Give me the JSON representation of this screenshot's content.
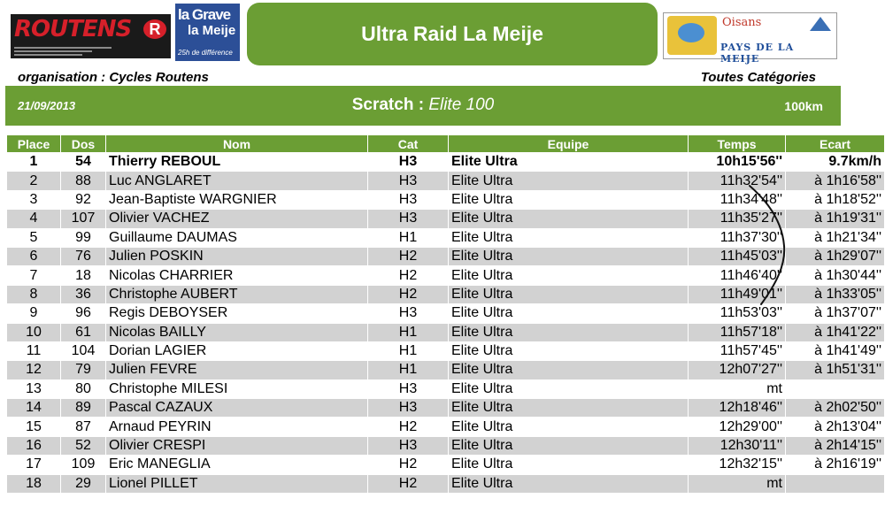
{
  "header": {
    "title": "Ultra Raid La Meije",
    "organisation": "organisation : Cycles Routens",
    "categories": "Toutes Catégories",
    "date": "21/09/2013",
    "scratch_label": "Scratch :",
    "scratch_category": "Elite 100",
    "distance": "100km"
  },
  "logos": {
    "routens": "ROUTENS",
    "routens_r": "R",
    "lagrave_line1": "la Grave",
    "lagrave_line2": "la Meije",
    "lagrave_tagline": "25h de différence",
    "oisans": "Oisans",
    "pays_meije": "PAYS DE LA MEIJE"
  },
  "colors": {
    "accent_green": "#6b9e34",
    "row_alt_gray": "#d2d2d2"
  },
  "table": {
    "columns": [
      "Place",
      "Dos",
      "Nom",
      "Cat",
      "Equipe",
      "Temps",
      "Ecart"
    ],
    "rows": [
      [
        "1",
        "54",
        "Thierry REBOUL",
        "H3",
        "Elite Ultra",
        "10h15'56''",
        "9.7km/h"
      ],
      [
        "2",
        "88",
        "Luc ANGLARET",
        "H3",
        "Elite Ultra",
        "11h32'54''",
        "à 1h16'58''"
      ],
      [
        "3",
        "92",
        "Jean-Baptiste WARGNIER",
        "H3",
        "Elite Ultra",
        "11h34'48''",
        "à 1h18'52''"
      ],
      [
        "4",
        "107",
        "Olivier VACHEZ",
        "H3",
        "Elite Ultra",
        "11h35'27''",
        "à 1h19'31''"
      ],
      [
        "5",
        "99",
        "Guillaume DAUMAS",
        "H1",
        "Elite Ultra",
        "11h37'30''",
        "à 1h21'34''"
      ],
      [
        "6",
        "76",
        "Julien POSKIN",
        "H2",
        "Elite Ultra",
        "11h45'03''",
        "à 1h29'07''"
      ],
      [
        "7",
        "18",
        "Nicolas CHARRIER",
        "H2",
        "Elite Ultra",
        "11h46'40''",
        "à 1h30'44''"
      ],
      [
        "8",
        "36",
        "Christophe AUBERT",
        "H2",
        "Elite Ultra",
        "11h49'01''",
        "à 1h33'05''"
      ],
      [
        "9",
        "96",
        "Regis DEBOYSER",
        "H3",
        "Elite Ultra",
        "11h53'03''",
        "à 1h37'07''"
      ],
      [
        "10",
        "61",
        "Nicolas BAILLY",
        "H1",
        "Elite Ultra",
        "11h57'18''",
        "à 1h41'22''"
      ],
      [
        "11",
        "104",
        "Dorian LAGIER",
        "H1",
        "Elite Ultra",
        "11h57'45''",
        "à 1h41'49''"
      ],
      [
        "12",
        "79",
        "Julien FEVRE",
        "H1",
        "Elite Ultra",
        "12h07'27''",
        "à 1h51'31''"
      ],
      [
        "13",
        "80",
        "Christophe MILESI",
        "H3",
        "Elite Ultra",
        "mt",
        ""
      ],
      [
        "14",
        "89",
        "Pascal CAZAUX",
        "H3",
        "Elite Ultra",
        "12h18'46''",
        "à 2h02'50''"
      ],
      [
        "15",
        "87",
        "Arnaud PEYRIN",
        "H2",
        "Elite Ultra",
        "12h29'00''",
        "à 2h13'04''"
      ],
      [
        "16",
        "52",
        "Olivier CRESPI",
        "H3",
        "Elite Ultra",
        "12h30'11''",
        "à 2h14'15''"
      ],
      [
        "17",
        "109",
        "Eric MANEGLIA",
        "H2",
        "Elite Ultra",
        "12h32'15''",
        "à 2h16'19''"
      ],
      [
        "18",
        "29",
        "Lionel PILLET",
        "H2",
        "Elite Ultra",
        "mt",
        ""
      ]
    ]
  }
}
